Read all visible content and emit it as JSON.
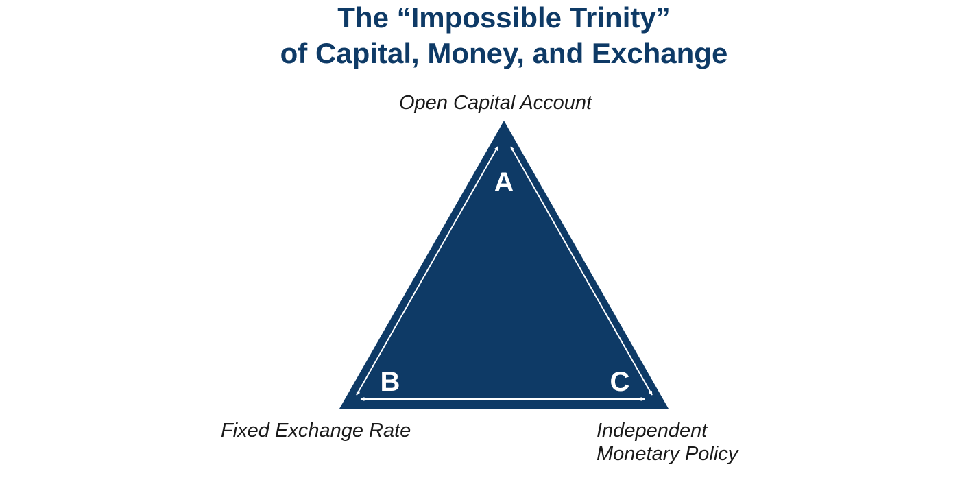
{
  "title": {
    "line1": "The “Impossible Trinity”",
    "line2": "of Capital, Money, and Exchange"
  },
  "vertices": {
    "top": {
      "letter": "A",
      "label": "Open Capital Account"
    },
    "bottom_left": {
      "letter": "B",
      "label": "Fixed Exchange Rate"
    },
    "bottom_right": {
      "letter": "C",
      "label_line1": "Independent",
      "label_line2": "Monetary Policy"
    }
  },
  "colors": {
    "triangle_fill": "#0e3a66",
    "title": "#0e3a66",
    "arrows": "#ffffff"
  }
}
